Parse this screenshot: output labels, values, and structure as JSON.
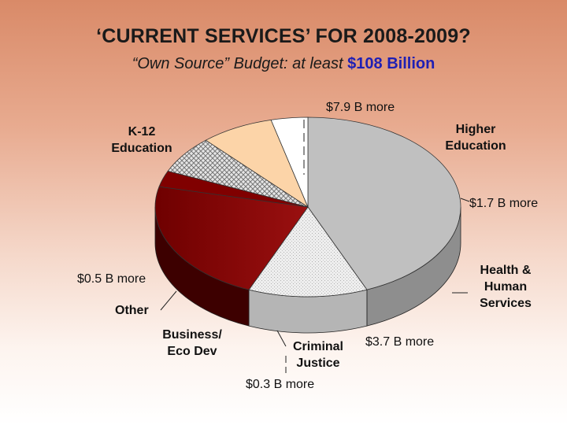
{
  "title": "‘CURRENT SERVICES’ FOR 2008-2009?",
  "subtitle": {
    "text": "“Own Source” Budget: at least ",
    "amount": "$108 Billion",
    "amount_color": "#1f1fb4"
  },
  "chart_data": {
    "type": "pie",
    "three_d": true,
    "slices": [
      {
        "label": "K-12 Education",
        "value": 45,
        "color": "#c0c0c0",
        "side_color": "#8e8e8e",
        "annotation": "$7.9 B more"
      },
      {
        "label": "Higher Education",
        "value": 13,
        "color": "#ececec",
        "side_color": "#b5b5b5",
        "pattern": "stipple",
        "annotation": ""
      },
      {
        "label": "Health & Human Services",
        "value": 23,
        "color": "#7a0000",
        "side_color": "#3d0000",
        "annotation": "$1.7 B more"
      },
      {
        "label": "",
        "value": 3,
        "color": "#800000",
        "side_color": "#400000",
        "annotation": "$3.7 B more"
      },
      {
        "label": "Criminal Justice",
        "value": 7,
        "color": "#d4d4d4",
        "side_color": "#9c9c9c",
        "pattern": "weave",
        "annotation": "$0.3 B more"
      },
      {
        "label": "Business/ Eco Dev",
        "value": 8,
        "color": "#fcd4a8",
        "side_color": "#7f6248",
        "annotation": ""
      },
      {
        "label": "Other",
        "value": 4,
        "color": "#ffffff",
        "side_color": "#8a8a8a",
        "annotation": "$0.5 B more"
      }
    ]
  },
  "labels": {
    "k12": [
      "K-12",
      "Education"
    ],
    "higher": [
      "Higher",
      "Education"
    ],
    "hhs": [
      "Health &",
      "Human",
      "Services"
    ],
    "other": "Other",
    "business": [
      "Business/",
      "Eco Dev"
    ],
    "criminal": [
      "Criminal",
      "Justice"
    ]
  },
  "notes": {
    "k12": "$7.9 B more",
    "hhs": "$1.7 B more",
    "other": "$0.5 B more",
    "unlabeled": "$3.7 B more",
    "criminal": "$0.3 B more"
  }
}
